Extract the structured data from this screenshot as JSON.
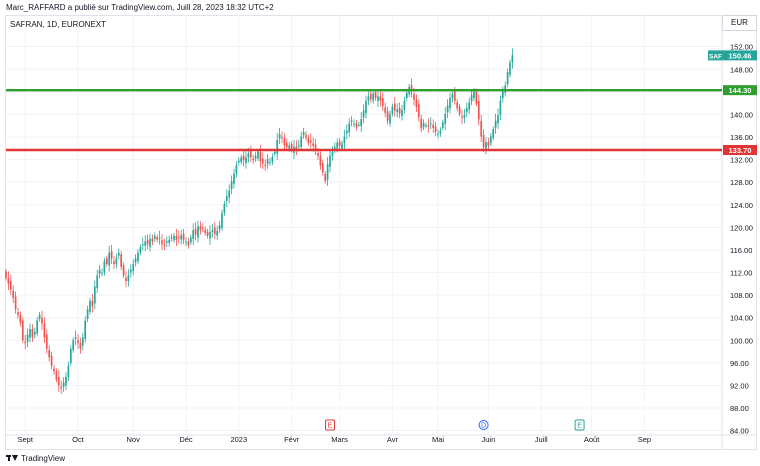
{
  "header": {
    "caption": "Marc_RAFFARD a publié sur TradingView.com, Juill 28, 2023 18:32 UTC+2",
    "symbol_title": "SAFRAN, 1D, EURONEXT",
    "currency": "EUR"
  },
  "footer": {
    "brand": "TradingView"
  },
  "chart_data": {
    "type": "candlestick",
    "title": "SAFRAN, 1D, EURONEXT",
    "ylim": [
      83.4,
      154.6
    ],
    "y_ticks": [
      152,
      148,
      144,
      140,
      136,
      132,
      128,
      124,
      120,
      116,
      112,
      108,
      104,
      100,
      96,
      92,
      88,
      84
    ],
    "x_ticks": [
      {
        "label": "Sept",
        "i": 8
      },
      {
        "label": "Oct",
        "i": 30
      },
      {
        "label": "Nov",
        "i": 53
      },
      {
        "label": "Déc",
        "i": 75
      },
      {
        "label": "2023",
        "i": 97
      },
      {
        "label": "Févr",
        "i": 119
      },
      {
        "label": "Mars",
        "i": 139
      },
      {
        "label": "Avr",
        "i": 161
      },
      {
        "label": "Mai",
        "i": 180
      },
      {
        "label": "Juin",
        "i": 201
      },
      {
        "label": "Juill",
        "i": 223
      },
      {
        "label": "Août",
        "i": 244
      },
      {
        "label": "Sep",
        "i": 266
      }
    ],
    "closes": [
      111,
      110,
      109,
      107.5,
      105.5,
      104.5,
      103,
      100,
      99.5,
      101,
      102,
      100.5,
      101.5,
      103.5,
      104.5,
      103,
      100.5,
      98.5,
      97,
      95.5,
      94.5,
      93,
      92,
      91.5,
      92.5,
      93.5,
      95.5,
      98.5,
      100,
      100.5,
      99.5,
      98.5,
      100.5,
      103.5,
      105.5,
      107,
      106,
      109.5,
      111.5,
      112.5,
      112,
      114,
      113.5,
      115.5,
      114.5,
      113.5,
      114.5,
      115.5,
      113,
      111.5,
      110.5,
      111.5,
      112.5,
      113.5,
      114.5,
      115.5,
      116.5,
      117,
      117.5,
      117,
      118,
      117.5,
      118.5,
      117.8,
      118.2,
      117,
      116.8,
      117.5,
      117.8,
      118.2,
      118.5,
      117.8,
      118.1,
      118.6,
      117.8,
      117.5,
      116.8,
      118.2,
      119.5,
      118.7,
      120.2,
      119.5,
      119.8,
      119,
      118.5,
      119.2,
      119.5,
      118.8,
      119.4,
      120.4,
      122.5,
      124.2,
      125.5,
      126.5,
      128.2,
      129.5,
      131,
      131.8,
      132.4,
      131.9,
      132.4,
      133.1,
      132.4,
      131.9,
      132.7,
      133.4,
      131.7,
      131.3,
      130.9,
      132.1,
      131.6,
      132.5,
      133.3,
      135.5,
      136.5,
      135.8,
      134.5,
      134.2,
      134.5,
      133.7,
      134.3,
      133.8,
      134.5,
      136.1,
      136.9,
      135.9,
      134.9,
      135.1,
      134.4,
      133.7,
      132.7,
      130.9,
      129.7,
      128.2,
      131.2,
      132.7,
      133.4,
      134.2,
      135,
      134.4,
      134.9,
      136.1,
      137.1,
      138.4,
      138.9,
      138.4,
      137.7,
      138.2,
      139.2,
      140.7,
      142.4,
      143.2,
      142.7,
      143.7,
      142.9,
      143.2,
      142.4,
      141.5,
      140.3,
      138.9,
      140.1,
      141.4,
      140.7,
      140.9,
      140.2,
      140.8,
      142.4,
      143.8,
      144.9,
      144.1,
      142.6,
      141.3,
      139.5,
      137.5,
      138.5,
      138.1,
      137.9,
      138.4,
      137.6,
      136.9,
      136.6,
      137.1,
      138.6,
      140.1,
      141.6,
      142.9,
      143.6,
      142.4,
      141.1,
      140.1,
      139.4,
      139.9,
      141.1,
      142.1,
      143.4,
      144.1,
      141.9,
      139.1,
      136.1,
      134.2,
      135.1,
      134.4,
      136.1,
      137.4,
      138.9,
      139.9,
      142.4,
      144.1,
      145.1,
      147.5,
      149.2,
      150.46
    ],
    "series": [
      {
        "name": "SAF",
        "last": "150.46"
      }
    ],
    "horizontal_lines": [
      {
        "value": 144.3,
        "label": "144.30",
        "color": "#2e9e2e"
      },
      {
        "value": 133.7,
        "label": "133.70",
        "color": "#e23434"
      }
    ],
    "last_price": {
      "symbol": "SAF",
      "label": "150.46",
      "value": 150.46
    },
    "event_markers": [
      {
        "label": "E",
        "i": 135,
        "color": "#e23434"
      },
      {
        "label": "D",
        "i": 199,
        "color": "#2962ff"
      },
      {
        "label": "E",
        "i": 239,
        "color": "#26a69a"
      }
    ],
    "colors": {
      "up": "#26a69a",
      "down": "#ef5350",
      "grid": "#f0f3fa",
      "axis_text": "#131722"
    }
  }
}
